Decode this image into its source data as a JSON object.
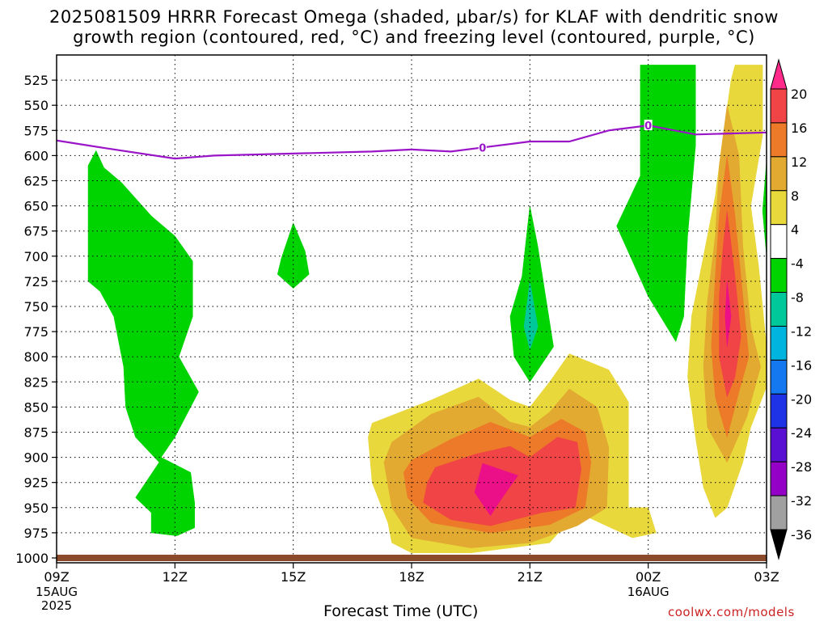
{
  "title_line1": "2025081509 HRRR Forecast Omega (shaded, μbar/s) for KLAF with dendritic snow",
  "title_line2": "growth region (contoured, red, °C) and freezing level (contoured, purple, °C)",
  "xaxis_title": "Forecast Time (UTC)",
  "credit": "coolwx.com/models",
  "colors": {
    "green": "#00d400",
    "teal": "#00c89a",
    "yellow": "#e8d83c",
    "gold": "#e2aa30",
    "orange": "#ec7a28",
    "red": "#f14446",
    "magenta": "#ec1088",
    "freezing": "#9a14c8",
    "ground": "#8b4a2a"
  },
  "chart_data": {
    "type": "heatmap",
    "title": "2025081509 HRRR Forecast Omega (shaded, μbar/s) for KLAF with dendritic snow growth region (contoured, red, °C) and freezing level (contoured, purple, °C)",
    "xlabel": "Forecast Time (UTC)",
    "ylabel": "",
    "x_ticks": [
      {
        "label": "09Z",
        "sub": [
          "15AUG",
          "2025"
        ],
        "hour": 0
      },
      {
        "label": "12Z",
        "sub": [],
        "hour": 3
      },
      {
        "label": "15Z",
        "sub": [],
        "hour": 6
      },
      {
        "label": "18Z",
        "sub": [],
        "hour": 9
      },
      {
        "label": "21Z",
        "sub": [],
        "hour": 12
      },
      {
        "label": "00Z",
        "sub": [
          "16AUG"
        ],
        "hour": 15
      },
      {
        "label": "03Z",
        "sub": [],
        "hour": 18
      }
    ],
    "xlim_hours": [
      0,
      18
    ],
    "y_ticks": [
      525,
      550,
      575,
      600,
      625,
      650,
      675,
      700,
      725,
      750,
      775,
      800,
      825,
      850,
      875,
      900,
      925,
      950,
      975,
      1000
    ],
    "ylim_hPa": [
      500,
      1000
    ],
    "grid": "dotted",
    "colorbar": {
      "labels": [
        "20",
        "16",
        "12",
        "8",
        "4",
        "-4",
        "-8",
        "-12",
        "-16",
        "-20",
        "-24",
        "-28",
        "-32",
        "-36"
      ],
      "colors": [
        "#ff2a8a",
        "#f14446",
        "#ec7a28",
        "#e2aa30",
        "#e8d83c",
        "#ffffff",
        "#00d400",
        "#00c89a",
        "#00b4e0",
        "#1478f0",
        "#1e32e6",
        "#5a10d2",
        "#9400c6",
        "#a0a0a0",
        "#000000"
      ]
    },
    "freezing_level": {
      "label": "0",
      "points": [
        {
          "hour": 0.0,
          "p": 585
        },
        {
          "hour": 1.3,
          "p": 593
        },
        {
          "hour": 3.0,
          "p": 603
        },
        {
          "hour": 4.0,
          "p": 600
        },
        {
          "hour": 6.0,
          "p": 598
        },
        {
          "hour": 8.0,
          "p": 596
        },
        {
          "hour": 9.0,
          "p": 594
        },
        {
          "hour": 10.0,
          "p": 596
        },
        {
          "hour": 11.0,
          "p": 591
        },
        {
          "hour": 12.0,
          "p": 586
        },
        {
          "hour": 13.0,
          "p": 586
        },
        {
          "hour": 14.0,
          "p": 575
        },
        {
          "hour": 15.0,
          "p": 570
        },
        {
          "hour": 16.2,
          "p": 579
        },
        {
          "hour": 18.0,
          "p": 577
        }
      ]
    },
    "omega_regions": [
      {
        "value": -8,
        "color": "#00d400",
        "points": [
          [
            1.0,
            595
          ],
          [
            1.2,
            612
          ],
          [
            1.65,
            627
          ],
          [
            2.4,
            660
          ],
          [
            3.0,
            680
          ],
          [
            3.45,
            705
          ],
          [
            3.45,
            760
          ],
          [
            3.1,
            800
          ],
          [
            3.6,
            835
          ],
          [
            3.0,
            880
          ],
          [
            2.65,
            900
          ],
          [
            3.4,
            915
          ],
          [
            3.5,
            945
          ],
          [
            3.5,
            970
          ],
          [
            3.05,
            978
          ],
          [
            2.4,
            975
          ],
          [
            2.4,
            955
          ],
          [
            2.0,
            940
          ],
          [
            2.6,
            905
          ],
          [
            2.0,
            880
          ],
          [
            1.75,
            850
          ],
          [
            1.7,
            810
          ],
          [
            1.45,
            760
          ],
          [
            1.1,
            735
          ],
          [
            0.8,
            725
          ],
          [
            0.8,
            610
          ]
        ]
      },
      {
        "value": -8,
        "color": "#00d400",
        "points": [
          [
            6.0,
            667
          ],
          [
            6.3,
            695
          ],
          [
            6.4,
            718
          ],
          [
            6.0,
            732
          ],
          [
            5.6,
            718
          ],
          [
            5.7,
            702
          ]
        ]
      },
      {
        "value": -8,
        "color": "#00d400",
        "points": [
          [
            12.0,
            650
          ],
          [
            12.2,
            690
          ],
          [
            12.4,
            740
          ],
          [
            12.6,
            790
          ],
          [
            12.0,
            825
          ],
          [
            11.6,
            800
          ],
          [
            11.5,
            760
          ],
          [
            11.8,
            720
          ]
        ]
      },
      {
        "value": -12,
        "color": "#00c89a",
        "points": [
          [
            12.0,
            725
          ],
          [
            12.2,
            770
          ],
          [
            12.0,
            793
          ],
          [
            11.85,
            770
          ]
        ]
      },
      {
        "value": -8,
        "color": "#00d400",
        "points": [
          [
            14.8,
            510
          ],
          [
            16.2,
            510
          ],
          [
            16.2,
            590
          ],
          [
            16.0,
            680
          ],
          [
            15.9,
            760
          ],
          [
            15.7,
            785
          ],
          [
            15.0,
            740
          ],
          [
            14.2,
            670
          ],
          [
            14.8,
            620
          ]
        ]
      },
      {
        "value": -8,
        "color": "#00d400",
        "points": [
          [
            18.0,
            605
          ],
          [
            18.0,
            700
          ],
          [
            17.9,
            655
          ]
        ]
      },
      {
        "value": 4,
        "color": "#e8d83c",
        "points": [
          [
            8.0,
            866
          ],
          [
            9.5,
            843
          ],
          [
            10.7,
            822
          ],
          [
            11.5,
            843
          ],
          [
            12.0,
            850
          ],
          [
            12.5,
            825
          ],
          [
            13.0,
            797
          ],
          [
            14.0,
            813
          ],
          [
            14.5,
            845
          ],
          [
            14.5,
            950
          ],
          [
            15.0,
            950
          ],
          [
            15.2,
            975
          ],
          [
            14.6,
            980
          ],
          [
            13.5,
            960
          ],
          [
            13.0,
            963
          ],
          [
            12.5,
            985
          ],
          [
            11.5,
            990
          ],
          [
            10.5,
            995
          ],
          [
            9.0,
            995
          ],
          [
            8.5,
            985
          ],
          [
            8.4,
            965
          ],
          [
            8.0,
            925
          ],
          [
            7.9,
            880
          ]
        ]
      },
      {
        "value": 8,
        "color": "#e2aa30",
        "points": [
          [
            8.5,
            885
          ],
          [
            9.5,
            857
          ],
          [
            10.7,
            840
          ],
          [
            11.5,
            865
          ],
          [
            12.0,
            870
          ],
          [
            12.5,
            855
          ],
          [
            13.0,
            832
          ],
          [
            13.7,
            850
          ],
          [
            14.0,
            890
          ],
          [
            13.95,
            950
          ],
          [
            13.2,
            968
          ],
          [
            12.0,
            985
          ],
          [
            10.5,
            990
          ],
          [
            9.0,
            980
          ],
          [
            8.5,
            950
          ],
          [
            8.3,
            905
          ]
        ]
      },
      {
        "value": 12,
        "color": "#ec7a28",
        "points": [
          [
            9.0,
            903
          ],
          [
            10.0,
            882
          ],
          [
            11.0,
            865
          ],
          [
            12.0,
            880
          ],
          [
            12.8,
            862
          ],
          [
            13.4,
            875
          ],
          [
            13.55,
            905
          ],
          [
            13.4,
            950
          ],
          [
            12.5,
            967
          ],
          [
            11.0,
            975
          ],
          [
            9.5,
            965
          ],
          [
            8.9,
            940
          ],
          [
            8.8,
            915
          ]
        ]
      },
      {
        "value": 16,
        "color": "#f14446",
        "points": [
          [
            9.6,
            910
          ],
          [
            10.6,
            897
          ],
          [
            11.5,
            889
          ],
          [
            12.0,
            900
          ],
          [
            12.7,
            880
          ],
          [
            13.2,
            885
          ],
          [
            13.3,
            912
          ],
          [
            13.15,
            950
          ],
          [
            12.3,
            955
          ],
          [
            11.0,
            968
          ],
          [
            10.0,
            962
          ],
          [
            9.3,
            945
          ],
          [
            9.4,
            925
          ]
        ]
      },
      {
        "value": 20,
        "color": "#ec1088",
        "points": [
          [
            10.8,
            906
          ],
          [
            11.7,
            918
          ],
          [
            11.3,
            940
          ],
          [
            11.0,
            958
          ],
          [
            10.6,
            935
          ]
        ]
      },
      {
        "value": 4,
        "color": "#e8d83c",
        "points": [
          [
            17.2,
            510
          ],
          [
            17.9,
            510
          ],
          [
            17.9,
            580
          ],
          [
            17.6,
            650
          ],
          [
            17.8,
            710
          ],
          [
            18.0,
            790
          ],
          [
            18.0,
            830
          ],
          [
            17.6,
            870
          ],
          [
            17.4,
            905
          ],
          [
            17.0,
            950
          ],
          [
            16.7,
            960
          ],
          [
            16.4,
            930
          ],
          [
            16.2,
            880
          ],
          [
            16.0,
            820
          ],
          [
            16.1,
            760
          ],
          [
            16.4,
            700
          ],
          [
            16.7,
            640
          ],
          [
            16.9,
            580
          ],
          [
            17.1,
            525
          ]
        ]
      },
      {
        "value": 8,
        "color": "#e2aa30",
        "points": [
          [
            17.0,
            550
          ],
          [
            17.3,
            600
          ],
          [
            17.4,
            690
          ],
          [
            17.6,
            770
          ],
          [
            17.85,
            810
          ],
          [
            17.5,
            860
          ],
          [
            17.0,
            905
          ],
          [
            16.5,
            870
          ],
          [
            16.4,
            810
          ],
          [
            16.5,
            745
          ],
          [
            16.7,
            680
          ],
          [
            16.8,
            610
          ]
        ]
      },
      {
        "value": 12,
        "color": "#ec7a28",
        "points": [
          [
            17.0,
            600
          ],
          [
            17.2,
            660
          ],
          [
            17.4,
            740
          ],
          [
            17.55,
            800
          ],
          [
            17.3,
            835
          ],
          [
            17.0,
            880
          ],
          [
            16.7,
            840
          ],
          [
            16.6,
            790
          ],
          [
            16.7,
            720
          ],
          [
            16.8,
            660
          ]
        ]
      },
      {
        "value": 16,
        "color": "#f14446",
        "points": [
          [
            17.0,
            655
          ],
          [
            17.2,
            720
          ],
          [
            17.35,
            780
          ],
          [
            17.2,
            820
          ],
          [
            17.0,
            840
          ],
          [
            16.8,
            800
          ],
          [
            16.8,
            740
          ],
          [
            16.9,
            690
          ]
        ]
      },
      {
        "value": 20,
        "color": "#ec1088",
        "points": [
          [
            17.0,
            725
          ],
          [
            17.1,
            760
          ],
          [
            17.0,
            790
          ],
          [
            16.95,
            760
          ]
        ]
      }
    ]
  }
}
